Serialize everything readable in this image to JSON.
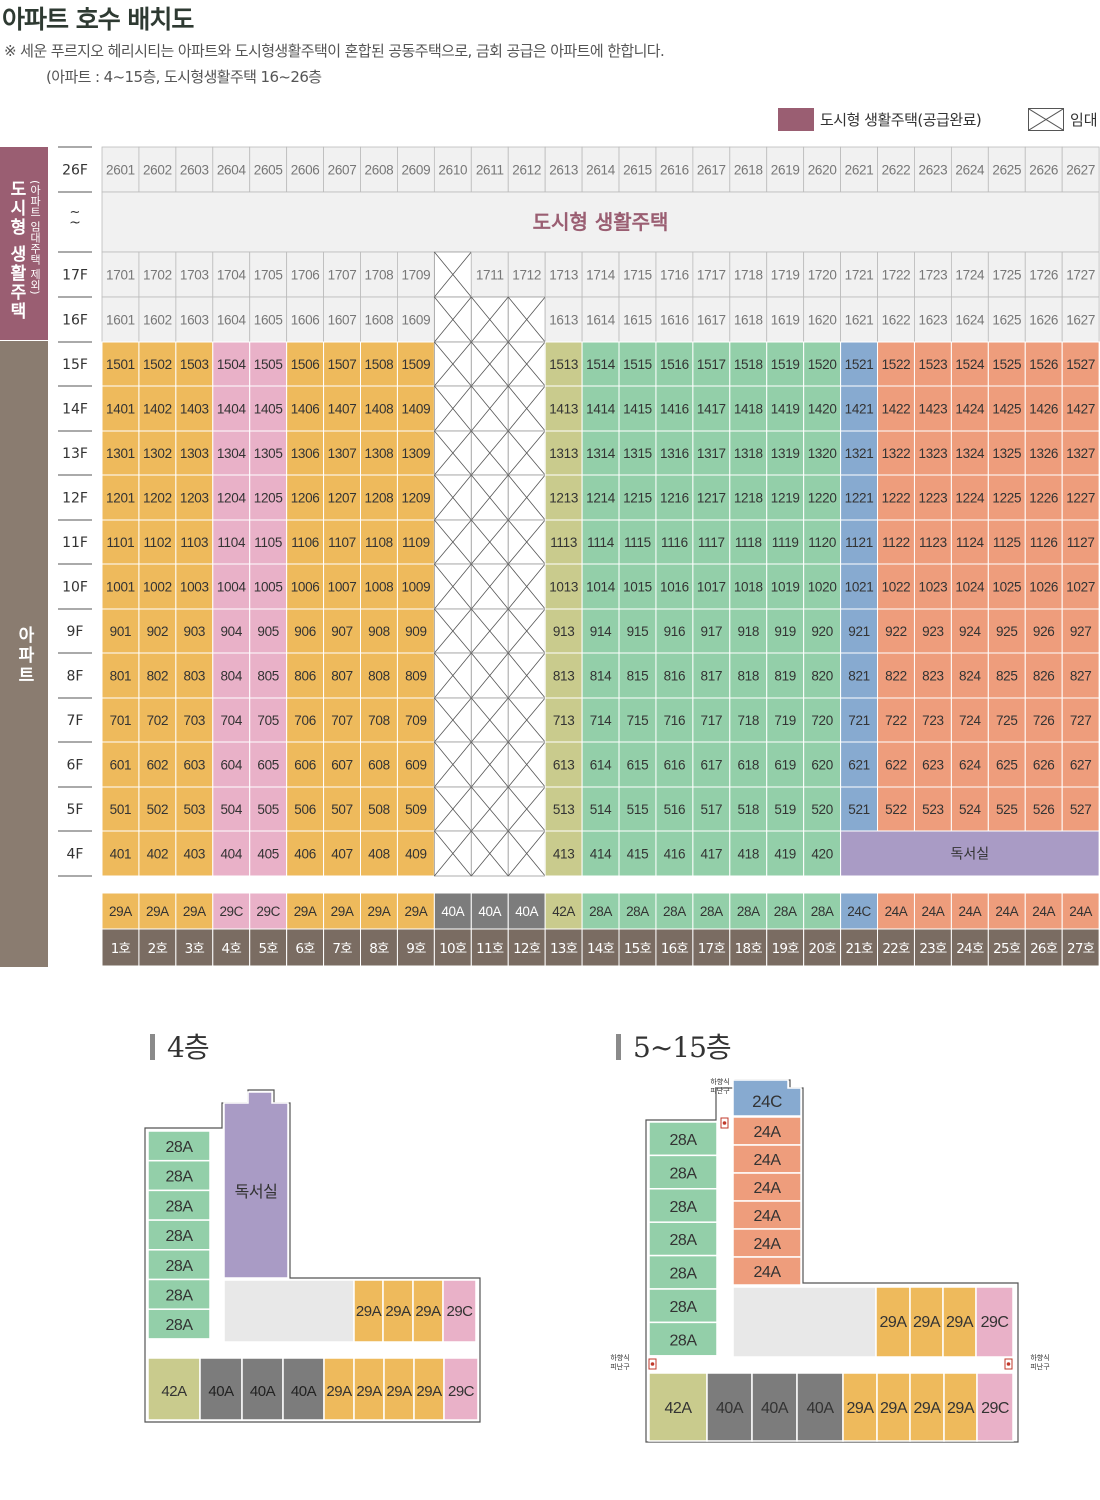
{
  "header": {
    "title": "아파트 호수 배치도",
    "note1": "※ 세운 푸르지오 헤리시티는 아파트와 도시형생활주택이 혼합된 공동주택으로, 금회 공급은 아파트에 한합니다.",
    "note2": "(아파트 : 4~15층, 도시형생활주택 16~26층"
  },
  "legend": {
    "urban_label": "도시형 생활주택(공급완료)",
    "rental_label": "임대"
  },
  "colors": {
    "urban": "#9a5e72",
    "apt_side": "#8a7c70",
    "29A": "#eeba5c",
    "29C": "#e9b1c8",
    "40A": "#7c7c7c",
    "42A": "#c9cb8d",
    "28A": "#93cfa9",
    "24C": "#87aad0",
    "24A": "#ee9d7c",
    "library": "#a99bc5",
    "gray_cell": "#f1f1f1",
    "ho_row": "#7a6c62"
  },
  "side_labels": {
    "urban_main": "도시형 생활주택",
    "urban_sub": "(아파트 임대주택 제외)",
    "apt": "아파트"
  },
  "urban_band_label": "도시형 생활주택",
  "tilde": "~",
  "library_label": "독서실",
  "unit_numbers": [
    "01",
    "02",
    "03",
    "04",
    "05",
    "06",
    "07",
    "08",
    "09",
    "10",
    "11",
    "12",
    "13",
    "14",
    "15",
    "16",
    "17",
    "18",
    "19",
    "20",
    "21",
    "22",
    "23",
    "24",
    "25",
    "26",
    "27"
  ],
  "unit_types": [
    "29A",
    "29A",
    "29A",
    "29C",
    "29C",
    "29A",
    "29A",
    "29A",
    "29A",
    "40A",
    "40A",
    "40A",
    "42A",
    "28A",
    "28A",
    "28A",
    "28A",
    "28A",
    "28A",
    "28A",
    "24C",
    "24A",
    "24A",
    "24A",
    "24A",
    "24A",
    "24A"
  ],
  "ho_labels": [
    "1호",
    "2호",
    "3호",
    "4호",
    "5호",
    "6호",
    "7호",
    "8호",
    "9호",
    "10호",
    "11호",
    "12호",
    "13호",
    "14호",
    "15호",
    "16호",
    "17호",
    "18호",
    "19호",
    "20호",
    "21호",
    "22호",
    "23호",
    "24호",
    "25호",
    "26호",
    "27호"
  ],
  "floors": [
    {
      "label": "26F",
      "num": "26",
      "kind": "urban"
    },
    {
      "label": "~",
      "num": "",
      "kind": "band"
    },
    {
      "label": "17F",
      "num": "17",
      "kind": "urban"
    },
    {
      "label": "16F",
      "num": "16",
      "kind": "urban"
    },
    {
      "label": "15F",
      "num": "15",
      "kind": "apt"
    },
    {
      "label": "14F",
      "num": "14",
      "kind": "apt"
    },
    {
      "label": "13F",
      "num": "13",
      "kind": "apt"
    },
    {
      "label": "12F",
      "num": "12",
      "kind": "apt"
    },
    {
      "label": "11F",
      "num": "11",
      "kind": "apt"
    },
    {
      "label": "10F",
      "num": "10",
      "kind": "apt"
    },
    {
      "label": "9F",
      "num": "9",
      "kind": "apt"
    },
    {
      "label": "8F",
      "num": "8",
      "kind": "apt"
    },
    {
      "label": "7F",
      "num": "7",
      "kind": "apt"
    },
    {
      "label": "6F",
      "num": "6",
      "kind": "apt"
    },
    {
      "label": "5F",
      "num": "5",
      "kind": "apt"
    },
    {
      "label": "4F",
      "num": "4",
      "kind": "apt4"
    }
  ],
  "plan4": {
    "title": "4층",
    "left_units": [
      "28A",
      "28A",
      "28A",
      "28A",
      "28A",
      "28A",
      "28A"
    ],
    "library": "독서실",
    "mid_units": [
      "29A",
      "29A",
      "29A",
      "29C"
    ],
    "bottom_units": [
      "42A",
      "40A",
      "40A",
      "40A",
      "29A",
      "29A",
      "29A",
      "29A",
      "29C"
    ]
  },
  "plan515": {
    "title": "5~15층",
    "top_unit": "24C",
    "right_units": [
      "24A",
      "24A",
      "24A",
      "24A",
      "24A",
      "24A"
    ],
    "left_units": [
      "28A",
      "28A",
      "28A",
      "28A",
      "28A",
      "28A",
      "28A"
    ],
    "mid_units": [
      "29A",
      "29A",
      "29A",
      "29C"
    ],
    "bottom_units": [
      "42A",
      "40A",
      "40A",
      "40A",
      "29A",
      "29A",
      "29A",
      "29A",
      "29C"
    ],
    "refuge_label_1": "하향식",
    "refuge_label_2": "피난구"
  }
}
